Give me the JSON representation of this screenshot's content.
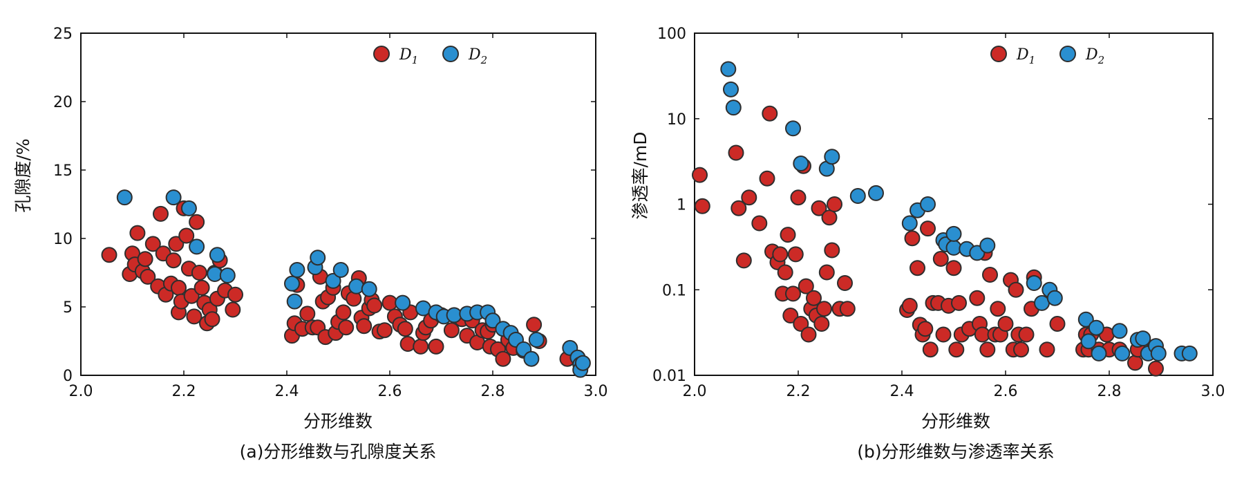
{
  "colors": {
    "D1": "#cc2a26",
    "D2": "#2a8fd0",
    "edge": "#2e2e2e"
  },
  "chart_data": [
    {
      "type": "scatter",
      "title": "",
      "caption": "(a)分形维数与孔隙度关系",
      "xlabel": "分形维数",
      "ylabel": "孔隙度/%",
      "xlim": [
        2.0,
        3.0
      ],
      "ylim": [
        0,
        25
      ],
      "xscale": "linear",
      "yscale": "linear",
      "xticks": [
        2.0,
        2.2,
        2.4,
        2.6,
        2.8,
        3.0
      ],
      "xtick_labels": [
        "2.0",
        "2.2",
        "2.4",
        "2.6",
        "2.8",
        "3.0"
      ],
      "yticks": [
        0,
        5,
        10,
        15,
        20,
        25
      ],
      "ytick_labels": [
        "0",
        "5",
        "10",
        "15",
        "20",
        "25"
      ],
      "grid": false,
      "legend_position": "top-right",
      "series": [
        {
          "name": "D1",
          "legend_main": "D",
          "legend_sub": "1",
          "color": "#cc2a26",
          "x": [
            2.055,
            2.095,
            2.1,
            2.105,
            2.11,
            2.12,
            2.125,
            2.13,
            2.14,
            2.15,
            2.155,
            2.16,
            2.165,
            2.175,
            2.18,
            2.185,
            2.19,
            2.19,
            2.195,
            2.2,
            2.205,
            2.21,
            2.215,
            2.22,
            2.225,
            2.23,
            2.235,
            2.24,
            2.245,
            2.25,
            2.255,
            2.26,
            2.265,
            2.27,
            2.28,
            2.295,
            2.3,
            2.41,
            2.415,
            2.42,
            2.43,
            2.44,
            2.45,
            2.46,
            2.465,
            2.47,
            2.475,
            2.48,
            2.49,
            2.495,
            2.5,
            2.51,
            2.515,
            2.52,
            2.53,
            2.54,
            2.545,
            2.55,
            2.56,
            2.565,
            2.57,
            2.58,
            2.59,
            2.6,
            2.61,
            2.62,
            2.63,
            2.635,
            2.64,
            2.66,
            2.665,
            2.67,
            2.68,
            2.69,
            2.7,
            2.72,
            2.74,
            2.75,
            2.76,
            2.77,
            2.78,
            2.79,
            2.795,
            2.8,
            2.81,
            2.82,
            2.83,
            2.84,
            2.86,
            2.88,
            2.89,
            2.945
          ],
          "y": [
            8.8,
            7.4,
            8.9,
            8.1,
            10.4,
            7.6,
            8.5,
            7.2,
            9.6,
            6.5,
            11.8,
            8.9,
            5.9,
            6.7,
            8.4,
            9.6,
            4.6,
            6.4,
            5.4,
            12.2,
            10.2,
            7.8,
            5.8,
            4.3,
            11.2,
            7.5,
            6.4,
            5.3,
            3.8,
            4.8,
            4.1,
            7.5,
            5.6,
            8.4,
            6.2,
            4.8,
            5.9,
            2.9,
            3.8,
            6.6,
            3.4,
            4.5,
            3.5,
            3.5,
            7.2,
            5.4,
            2.8,
            5.7,
            6.4,
            3.1,
            3.9,
            4.6,
            3.5,
            6.0,
            5.6,
            7.1,
            4.2,
            3.6,
            4.9,
            5.5,
            5.1,
            3.2,
            3.3,
            5.3,
            4.3,
            3.7,
            3.4,
            2.3,
            4.6,
            2.1,
            3.1,
            3.5,
            4.0,
            2.1,
            4.4,
            3.3,
            4.1,
            2.9,
            4.0,
            2.4,
            3.3,
            3.2,
            2.1,
            3.7,
            1.9,
            1.2,
            2.6,
            2.0,
            1.8,
            3.7,
            2.5,
            1.2
          ]
        },
        {
          "name": "D2",
          "legend_main": "D",
          "legend_sub": "2",
          "color": "#2a8fd0",
          "x": [
            2.085,
            2.18,
            2.21,
            2.225,
            2.26,
            2.265,
            2.285,
            2.41,
            2.415,
            2.42,
            2.455,
            2.46,
            2.49,
            2.505,
            2.535,
            2.56,
            2.625,
            2.665,
            2.69,
            2.705,
            2.725,
            2.75,
            2.77,
            2.79,
            2.8,
            2.82,
            2.835,
            2.845,
            2.86,
            2.875,
            2.885,
            2.95,
            2.965,
            2.97,
            2.97,
            2.975
          ],
          "y": [
            13.0,
            13.0,
            12.2,
            9.4,
            7.4,
            8.8,
            7.3,
            6.7,
            5.4,
            7.7,
            7.9,
            8.6,
            6.9,
            7.7,
            6.5,
            6.3,
            5.3,
            4.9,
            4.6,
            4.3,
            4.4,
            4.5,
            4.6,
            4.6,
            4.0,
            3.4,
            3.1,
            2.6,
            1.9,
            1.2,
            2.6,
            2.0,
            1.3,
            0.8,
            0.4,
            0.9
          ]
        }
      ]
    },
    {
      "type": "scatter",
      "title": "",
      "caption": "(b)分形维数与渗透率关系",
      "xlabel": "分形维数",
      "ylabel": "渗透率/mD",
      "xlim": [
        2.0,
        3.0
      ],
      "ylim": [
        0.01,
        100
      ],
      "xscale": "linear",
      "yscale": "log",
      "xticks": [
        2.0,
        2.2,
        2.4,
        2.6,
        2.8,
        3.0
      ],
      "xtick_labels": [
        "2.0",
        "2.2",
        "2.4",
        "2.6",
        "2.8",
        "3.0"
      ],
      "yticks": [
        0.01,
        0.1,
        1,
        10,
        100
      ],
      "ytick_labels": [
        "0.01",
        "0.1",
        "1",
        "10",
        "100"
      ],
      "grid": false,
      "legend_position": "top-right",
      "series": [
        {
          "name": "D1",
          "legend_main": "D",
          "legend_sub": "1",
          "color": "#cc2a26",
          "x": [
            2.01,
            2.015,
            2.08,
            2.085,
            2.095,
            2.105,
            2.125,
            2.14,
            2.145,
            2.15,
            2.16,
            2.165,
            2.17,
            2.175,
            2.18,
            2.185,
            2.19,
            2.195,
            2.2,
            2.205,
            2.21,
            2.215,
            2.22,
            2.225,
            2.23,
            2.235,
            2.24,
            2.245,
            2.25,
            2.255,
            2.26,
            2.265,
            2.27,
            2.28,
            2.29,
            2.295,
            2.41,
            2.415,
            2.42,
            2.43,
            2.435,
            2.44,
            2.445,
            2.45,
            2.455,
            2.46,
            2.47,
            2.475,
            2.48,
            2.49,
            2.5,
            2.505,
            2.51,
            2.515,
            2.53,
            2.545,
            2.55,
            2.555,
            2.56,
            2.565,
            2.57,
            2.58,
            2.585,
            2.59,
            2.6,
            2.61,
            2.615,
            2.62,
            2.625,
            2.63,
            2.64,
            2.65,
            2.655,
            2.68,
            2.7,
            2.75,
            2.755,
            2.76,
            2.765,
            2.78,
            2.795,
            2.8,
            2.82,
            2.85,
            2.855,
            2.885,
            2.89
          ],
          "y": [
            2.2,
            0.95,
            4.0,
            0.9,
            0.22,
            1.2,
            0.6,
            2.0,
            11.5,
            0.28,
            0.21,
            0.26,
            0.09,
            0.16,
            0.44,
            0.05,
            0.09,
            0.26,
            1.2,
            0.04,
            2.8,
            0.11,
            0.03,
            0.06,
            0.08,
            0.05,
            0.9,
            0.04,
            0.06,
            0.16,
            0.7,
            0.29,
            1.0,
            0.06,
            0.12,
            0.06,
            0.058,
            0.065,
            0.4,
            0.18,
            0.039,
            0.03,
            0.035,
            0.52,
            0.02,
            0.07,
            0.07,
            0.23,
            0.03,
            0.065,
            0.18,
            0.02,
            0.07,
            0.03,
            0.035,
            0.08,
            0.04,
            0.03,
            0.27,
            0.02,
            0.15,
            0.03,
            0.06,
            0.03,
            0.04,
            0.13,
            0.02,
            0.1,
            0.03,
            0.02,
            0.03,
            0.06,
            0.14,
            0.02,
            0.04,
            0.02,
            0.03,
            0.02,
            0.03,
            0.02,
            0.03,
            0.02,
            0.02,
            0.014,
            0.02,
            0.02,
            0.012
          ],
          "y_alt": []
        },
        {
          "name": "D2",
          "legend_main": "D",
          "legend_sub": "2",
          "color": "#2a8fd0",
          "x": [
            2.065,
            2.07,
            2.075,
            2.19,
            2.205,
            2.255,
            2.265,
            2.315,
            2.35,
            2.415,
            2.43,
            2.45,
            2.48,
            2.485,
            2.5,
            2.5,
            2.525,
            2.545,
            2.565,
            2.655,
            2.67,
            2.685,
            2.695,
            2.755,
            2.76,
            2.775,
            2.78,
            2.82,
            2.825,
            2.855,
            2.865,
            2.875,
            2.89,
            2.895,
            2.94,
            2.955
          ],
          "y": [
            38,
            22,
            13.5,
            7.7,
            3.0,
            2.6,
            3.6,
            1.25,
            1.35,
            0.6,
            0.85,
            1.0,
            0.38,
            0.34,
            0.31,
            0.45,
            0.3,
            0.27,
            0.33,
            0.12,
            0.07,
            0.1,
            0.08,
            0.045,
            0.025,
            0.036,
            0.018,
            0.033,
            0.018,
            0.026,
            0.027,
            0.018,
            0.022,
            0.018,
            0.018,
            0.018
          ]
        }
      ]
    }
  ]
}
